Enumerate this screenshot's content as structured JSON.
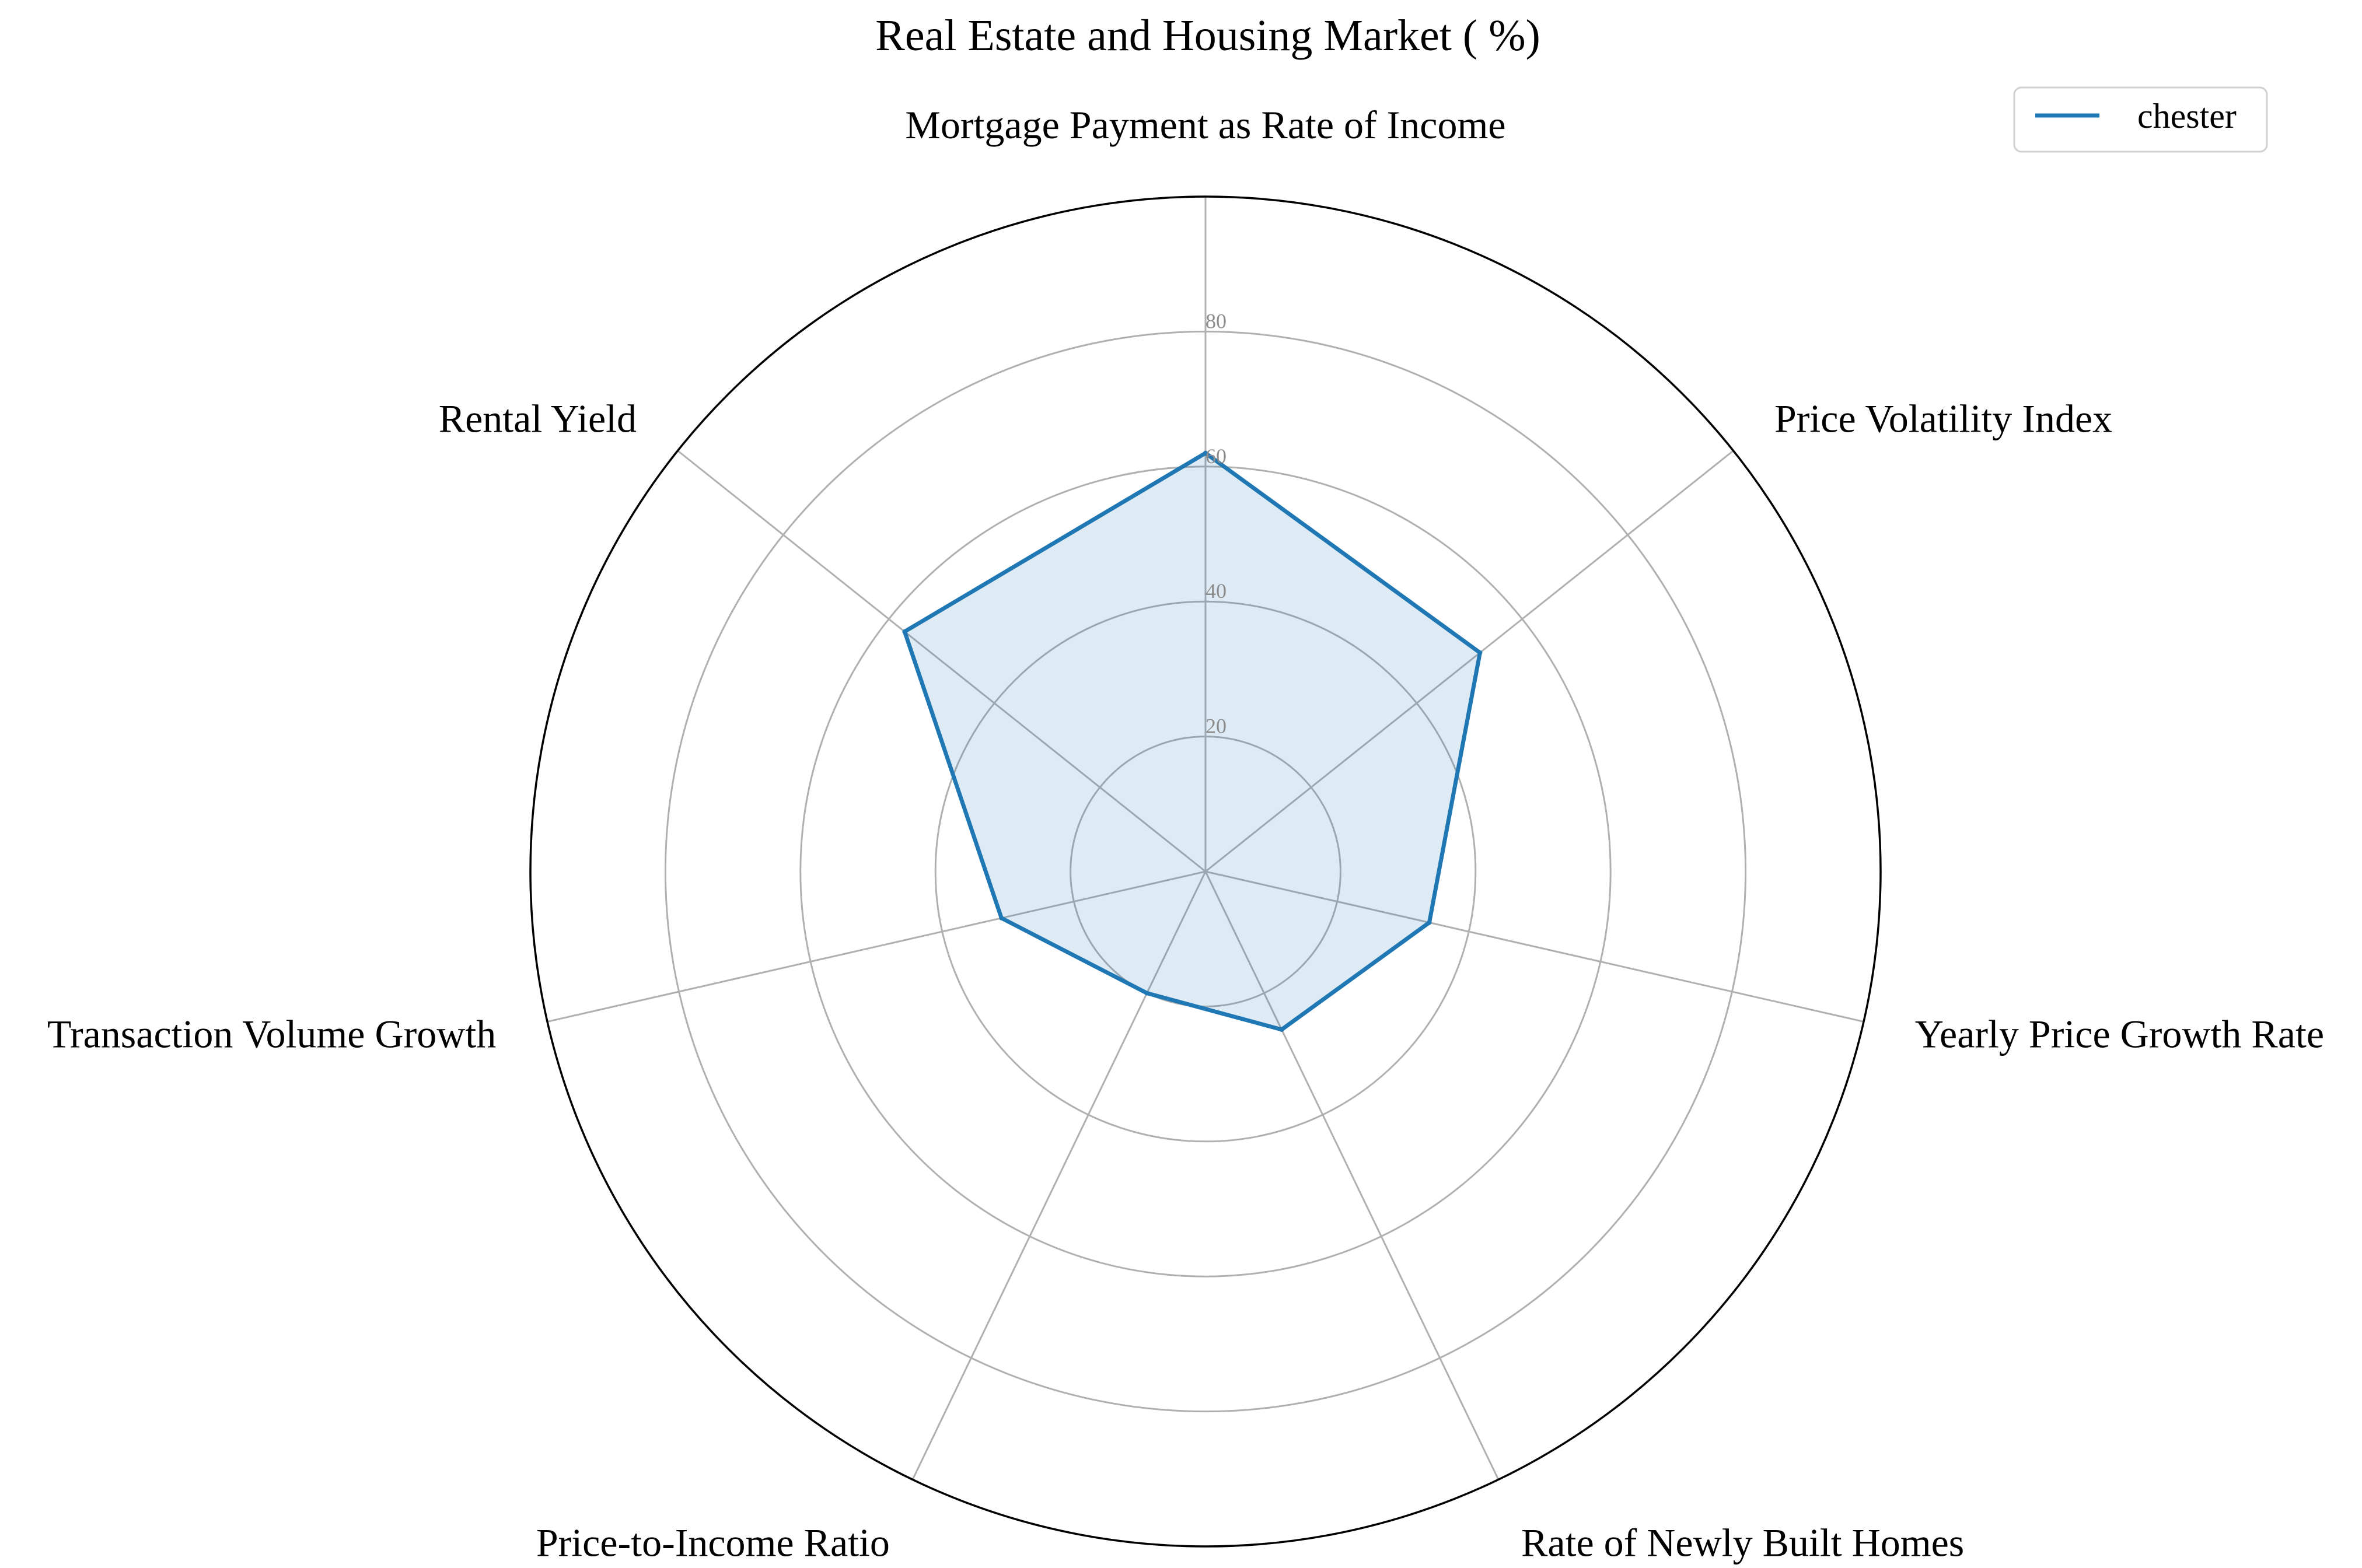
{
  "chart_data": {
    "type": "radar",
    "title": "Real Estate and Housing Market ( %)",
    "axes": [
      "Mortgage Payment as Rate of Income",
      "Price Volatility Index",
      "Yearly Price Growth Rate",
      "Rate of Newly Built Homes",
      "Price-to-Income Ratio",
      "Transaction Volume Growth",
      "Rental Yield"
    ],
    "radial_ticks": [
      "20",
      "40",
      "60",
      "80"
    ],
    "radial_tick_values": [
      20,
      40,
      60,
      80
    ],
    "rlim": [
      0,
      100
    ],
    "grid": true,
    "legend_position": "top-right",
    "series": [
      {
        "name": "chester",
        "color": "#1f77b4",
        "values": [
          62,
          52,
          34,
          26,
          20,
          31,
          57
        ]
      }
    ]
  }
}
